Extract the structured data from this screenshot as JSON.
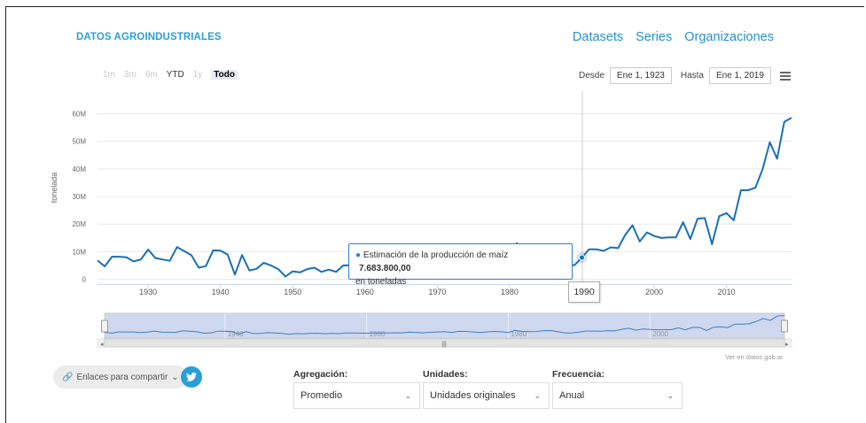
{
  "header": {
    "brand": "DATOS AGROINDUSTRIALES",
    "nav": [
      "Datasets",
      "Series",
      "Organizaciones"
    ]
  },
  "zoom_buttons": [
    {
      "label": "1m",
      "state": "disabled"
    },
    {
      "label": "3m",
      "state": "disabled"
    },
    {
      "label": "6m",
      "state": "disabled"
    },
    {
      "label": "YTD",
      "state": "normal"
    },
    {
      "label": "1y",
      "state": "disabled"
    },
    {
      "label": "Todo",
      "state": "active"
    }
  ],
  "range": {
    "from_label": "Desde",
    "from_value": "Ene 1, 1923",
    "to_label": "Hasta",
    "to_value": "Ene 1, 2019"
  },
  "tooltip": {
    "series": "Estimación de la producción de maíz",
    "value": "7.683.800,00",
    "unit": "en toneladas",
    "x_flag": "1990"
  },
  "credit": "Ver en datos.gob.ar",
  "share_label": "Enlaces para compartir",
  "controls": {
    "agregacion": {
      "label": "Agregación:",
      "value": "Promedio"
    },
    "unidades": {
      "label": "Unidades:",
      "value": "Unidades originales"
    },
    "frecuencia": {
      "label": "Frecuencia:",
      "value": "Anual"
    }
  },
  "colors": {
    "line": "#1a6fb5",
    "accent": "#2a9fd6",
    "navigator_fill": "#c6d1ec"
  },
  "chart_data": {
    "type": "line",
    "ylabel": "tonelada",
    "ylim": [
      0,
      60000000
    ],
    "xlim": [
      1923,
      2019
    ],
    "y_ticks": [
      "0",
      "10M",
      "20M",
      "30M",
      "40M",
      "50M",
      "60M"
    ],
    "x_ticks": [
      "1930",
      "1940",
      "1950",
      "1960",
      "1970",
      "1980",
      "1990",
      "2000",
      "2010"
    ],
    "navigator_ticks": [
      "1940",
      "1960",
      "1980",
      "2000"
    ],
    "series": [
      {
        "name": "Estimación de la producción de maíz",
        "x": [
          1923,
          1924,
          1925,
          1926,
          1927,
          1928,
          1929,
          1930,
          1931,
          1932,
          1933,
          1934,
          1935,
          1936,
          1937,
          1938,
          1939,
          1940,
          1941,
          1942,
          1943,
          1944,
          1945,
          1946,
          1947,
          1948,
          1949,
          1950,
          1951,
          1952,
          1953,
          1954,
          1955,
          1956,
          1957,
          1958,
          1959,
          1960,
          1961,
          1962,
          1963,
          1964,
          1965,
          1966,
          1967,
          1968,
          1969,
          1970,
          1971,
          1972,
          1973,
          1974,
          1975,
          1976,
          1977,
          1978,
          1979,
          1980,
          1981,
          1982,
          1983,
          1984,
          1985,
          1986,
          1987,
          1988,
          1989,
          1990,
          1991,
          1992,
          1993,
          1994,
          1995,
          1996,
          1997,
          1998,
          1999,
          2000,
          2001,
          2002,
          2003,
          2004,
          2005,
          2006,
          2007,
          2008,
          2009,
          2010,
          2011,
          2012,
          2013,
          2014,
          2015,
          2016,
          2017,
          2018,
          2019
        ],
        "y": [
          6600000,
          4500000,
          8000000,
          8000000,
          7800000,
          6300000,
          7000000,
          10600000,
          7500000,
          7000000,
          6500000,
          11500000,
          10000000,
          8500000,
          4000000,
          4600000,
          10300000,
          10200000,
          8800000,
          1500000,
          8600000,
          3000000,
          3600000,
          5800000,
          4800000,
          3500000,
          800000,
          2700000,
          2300000,
          3500000,
          4000000,
          2500000,
          3300000,
          2500000,
          4800000,
          4900000,
          4400000,
          4100000,
          4800000,
          5200000,
          4700000,
          5300000,
          5300000,
          7300000,
          6500000,
          5200000,
          7000000,
          8000000,
          9000000,
          6200000,
          9800000,
          9600000,
          8000000,
          6000000,
          7900000,
          9600000,
          8500000,
          6400000,
          12900000,
          9600000,
          9000000,
          9300000,
          11900000,
          12400000,
          9000000,
          4600000,
          5000000,
          7683800,
          10700000,
          10700000,
          10100000,
          11400000,
          11100000,
          15900000,
          19400000,
          13500000,
          16800000,
          15500000,
          14800000,
          15000000,
          15000000,
          20500000,
          14400000,
          21800000,
          22000000,
          12500000,
          22700000,
          23800000,
          21200000,
          32100000,
          32100000,
          33000000,
          39800000,
          49500000,
          43500000,
          56900000,
          58400000
        ]
      }
    ]
  }
}
